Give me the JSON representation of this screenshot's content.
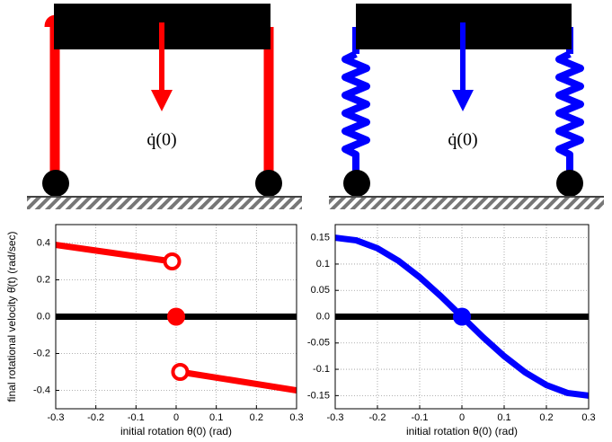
{
  "diagrams": [
    {
      "label": "q̇(0)"
    },
    {
      "label": "q̇(0)"
    }
  ],
  "chart_data": [
    {
      "type": "line",
      "ylabel": "final rotational velocity θ̇(t) (rad/sec)",
      "xlabel": "initial rotation θ(0) (rad)",
      "xlim": [
        -0.3,
        0.3
      ],
      "ylim": [
        -0.5,
        0.5
      ],
      "grid": true,
      "xticks": [
        -0.3,
        -0.2,
        -0.1,
        {
          "value": 0,
          "label": "0"
        },
        0.1,
        0.2,
        0.3
      ],
      "yticks": [
        0.4,
        0.2,
        {
          "value": 0,
          "label": "0.0"
        },
        -0.2,
        -0.4
      ],
      "series": [
        {
          "color": "#000000",
          "x": [
            -0.3,
            0.3
          ],
          "values": [
            0,
            0
          ]
        },
        {
          "color": "#ff0000",
          "x": [
            -0.3,
            -0.01
          ],
          "values": [
            0.39,
            0.3
          ]
        },
        {
          "color": "#ff0000",
          "x": [
            0.01,
            0.3
          ],
          "values": [
            -0.3,
            -0.4
          ]
        }
      ],
      "points": [
        {
          "x": -0.01,
          "y": 0.3,
          "style": "open",
          "color": "#ff0000"
        },
        {
          "x": 0,
          "y": 0,
          "style": "filled",
          "color": "#ff0000"
        },
        {
          "x": 0.01,
          "y": -0.3,
          "style": "open",
          "color": "#ff0000"
        }
      ]
    },
    {
      "type": "line",
      "xlabel": "initial rotation θ(0) (rad)",
      "xlim": [
        -0.3,
        0.3
      ],
      "ylim": [
        -0.175,
        0.175
      ],
      "grid": true,
      "xticks": [
        -0.3,
        -0.2,
        -0.1,
        {
          "value": 0,
          "label": "0"
        },
        0.1,
        0.2,
        0.3
      ],
      "yticks": [
        0.15,
        0.1,
        0.05,
        {
          "value": 0,
          "label": "0.0"
        },
        -0.05,
        -0.1,
        -0.15
      ],
      "series": [
        {
          "color": "#000000",
          "x": [
            -0.3,
            0.3
          ],
          "values": [
            0,
            0
          ]
        },
        {
          "color": "#0000ff",
          "x": [
            -0.3,
            -0.25,
            -0.2,
            -0.15,
            -0.1,
            -0.05,
            0,
            0.05,
            0.1,
            0.15,
            0.2,
            0.25,
            0.3
          ],
          "values": [
            0.15,
            0.145,
            0.13,
            0.106,
            0.075,
            0.039,
            0,
            -0.039,
            -0.075,
            -0.106,
            -0.13,
            -0.145,
            -0.15
          ]
        }
      ],
      "points": [
        {
          "x": 0,
          "y": 0,
          "style": "filled",
          "color": "#0000ff"
        }
      ]
    }
  ]
}
